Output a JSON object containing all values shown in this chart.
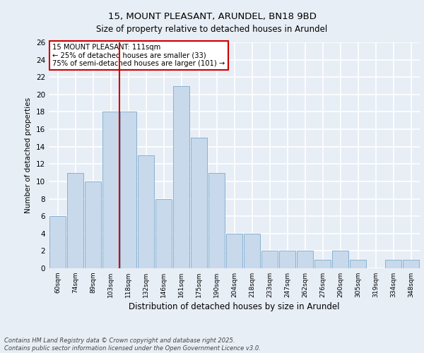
{
  "title1": "15, MOUNT PLEASANT, ARUNDEL, BN18 9BD",
  "title2": "Size of property relative to detached houses in Arundel",
  "xlabel": "Distribution of detached houses by size in Arundel",
  "ylabel": "Number of detached properties",
  "categories": [
    "60sqm",
    "74sqm",
    "89sqm",
    "103sqm",
    "118sqm",
    "132sqm",
    "146sqm",
    "161sqm",
    "175sqm",
    "190sqm",
    "204sqm",
    "218sqm",
    "233sqm",
    "247sqm",
    "262sqm",
    "276sqm",
    "290sqm",
    "305sqm",
    "319sqm",
    "334sqm",
    "348sqm"
  ],
  "values": [
    6,
    11,
    10,
    18,
    18,
    13,
    8,
    21,
    15,
    11,
    4,
    4,
    2,
    2,
    2,
    1,
    2,
    1,
    0,
    1,
    1
  ],
  "bar_color": "#c8d9ec",
  "bar_edge_color": "#7aaacb",
  "vline_x": 4.0,
  "vline_color": "#cc0000",
  "annotation_text": "15 MOUNT PLEASANT: 111sqm\n← 25% of detached houses are smaller (33)\n75% of semi-detached houses are larger (101) →",
  "annotation_box_color": "#ffffff",
  "annotation_box_edge_color": "#cc0000",
  "ylim": [
    0,
    26
  ],
  "yticks": [
    0,
    2,
    4,
    6,
    8,
    10,
    12,
    14,
    16,
    18,
    20,
    22,
    24,
    26
  ],
  "footer_text": "Contains HM Land Registry data © Crown copyright and database right 2025.\nContains public sector information licensed under the Open Government Licence v3.0.",
  "background_color": "#e8eef6",
  "plot_bg_color": "#e8eef6",
  "grid_color": "#ffffff"
}
